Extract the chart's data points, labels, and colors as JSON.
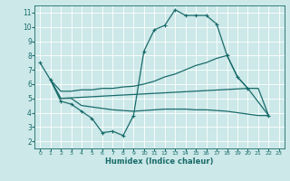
{
  "xlabel": "Humidex (Indice chaleur)",
  "bg_color": "#cce8e8",
  "line_color": "#1a6b6b",
  "grid_color": "#ffffff",
  "xlim": [
    -0.5,
    23.5
  ],
  "ylim": [
    1.5,
    11.5
  ],
  "xticks": [
    0,
    1,
    2,
    3,
    4,
    5,
    6,
    7,
    8,
    9,
    10,
    11,
    12,
    13,
    14,
    15,
    16,
    17,
    18,
    19,
    20,
    21,
    22,
    23
  ],
  "yticks": [
    2,
    3,
    4,
    5,
    6,
    7,
    8,
    9,
    10,
    11
  ],
  "curve1_x": [
    0,
    1,
    2,
    3,
    4,
    5,
    6,
    7,
    8,
    9,
    10,
    11,
    12,
    13,
    14,
    15,
    16,
    17,
    18,
    19,
    20
  ],
  "curve1_y": [
    7.5,
    6.3,
    4.8,
    4.6,
    4.1,
    3.6,
    2.6,
    2.7,
    2.4,
    3.8,
    8.3,
    9.8,
    10.1,
    11.2,
    10.8,
    10.8,
    10.8,
    10.2,
    8.0,
    6.5,
    5.7
  ],
  "curve2_x": [
    1,
    2,
    3,
    4,
    5,
    6,
    7,
    8,
    9,
    10,
    11,
    12,
    13,
    14,
    15,
    16,
    17,
    18,
    19,
    20,
    21,
    22
  ],
  "curve2_y": [
    6.3,
    5.5,
    5.5,
    5.6,
    5.6,
    5.7,
    5.7,
    5.8,
    5.85,
    6.0,
    6.2,
    6.5,
    6.7,
    7.0,
    7.3,
    7.5,
    7.8,
    8.0,
    6.5,
    5.7,
    5.7,
    3.8
  ],
  "curve3_x": [
    1,
    2,
    3,
    4,
    5,
    6,
    7,
    8,
    9,
    10,
    11,
    12,
    13,
    14,
    15,
    16,
    17,
    18,
    19,
    20,
    21,
    22
  ],
  "curve3_y": [
    6.3,
    5.0,
    5.0,
    4.5,
    4.4,
    4.3,
    4.2,
    4.15,
    4.1,
    4.15,
    4.2,
    4.25,
    4.25,
    4.25,
    4.2,
    4.2,
    4.15,
    4.1,
    4.0,
    3.9,
    3.8,
    3.8
  ],
  "curve4_x": [
    1,
    2,
    20,
    22
  ],
  "curve4_y": [
    6.3,
    5.0,
    5.7,
    3.8
  ],
  "marker_x1": [
    0,
    1,
    2,
    3,
    4,
    5,
    6,
    7,
    8,
    9,
    10,
    11,
    12,
    13,
    14,
    15,
    16,
    17,
    18,
    19,
    20
  ],
  "marker_y1": [
    7.5,
    6.3,
    4.8,
    4.6,
    4.1,
    3.6,
    2.6,
    2.7,
    2.4,
    3.8,
    8.3,
    9.8,
    10.1,
    11.2,
    10.8,
    10.8,
    10.8,
    10.2,
    8.0,
    6.5,
    5.7
  ],
  "marker_x2": [
    22
  ],
  "marker_y2": [
    3.8
  ]
}
